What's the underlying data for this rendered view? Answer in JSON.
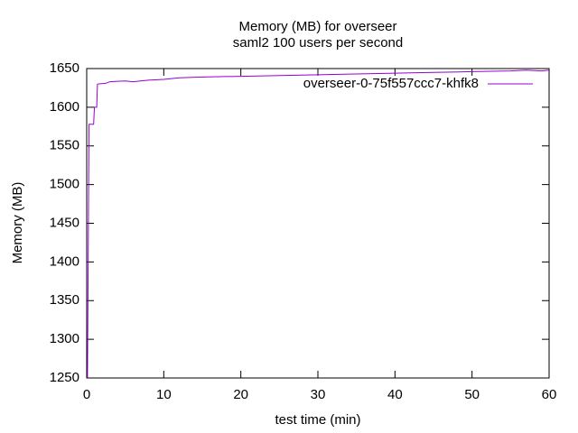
{
  "chart_data": {
    "type": "line",
    "title": "Memory (MB) for overseer",
    "subtitle": "saml2 100 users per second",
    "x_label": "test time (min)",
    "y_label": "Memory (MB)",
    "x": [
      0.1,
      0.3,
      0.9,
      1.0,
      1.3,
      1.4,
      2.5,
      3,
      5,
      6,
      8,
      10,
      12,
      15,
      20,
      25,
      30,
      35,
      40,
      45,
      50,
      55,
      57,
      59,
      60
    ],
    "series": [
      {
        "name": "overseer-0-75f557ccc7-khfk8",
        "color": "#9400d3",
        "values": [
          1250,
          1578,
          1578,
          1600,
          1600,
          1630,
          1631,
          1633,
          1634,
          1633,
          1635,
          1636,
          1638,
          1639,
          1640,
          1641,
          1642,
          1643,
          1644,
          1645,
          1646,
          1647,
          1648,
          1647,
          1648
        ]
      }
    ],
    "xlim": [
      0,
      60
    ],
    "xticks": [
      0,
      10,
      20,
      30,
      40,
      50,
      60
    ],
    "ylim": [
      1250,
      1650
    ],
    "yticks": [
      1250,
      1300,
      1350,
      1400,
      1450,
      1500,
      1550,
      1600,
      1650
    ],
    "grid": false,
    "legend": "top-right"
  }
}
